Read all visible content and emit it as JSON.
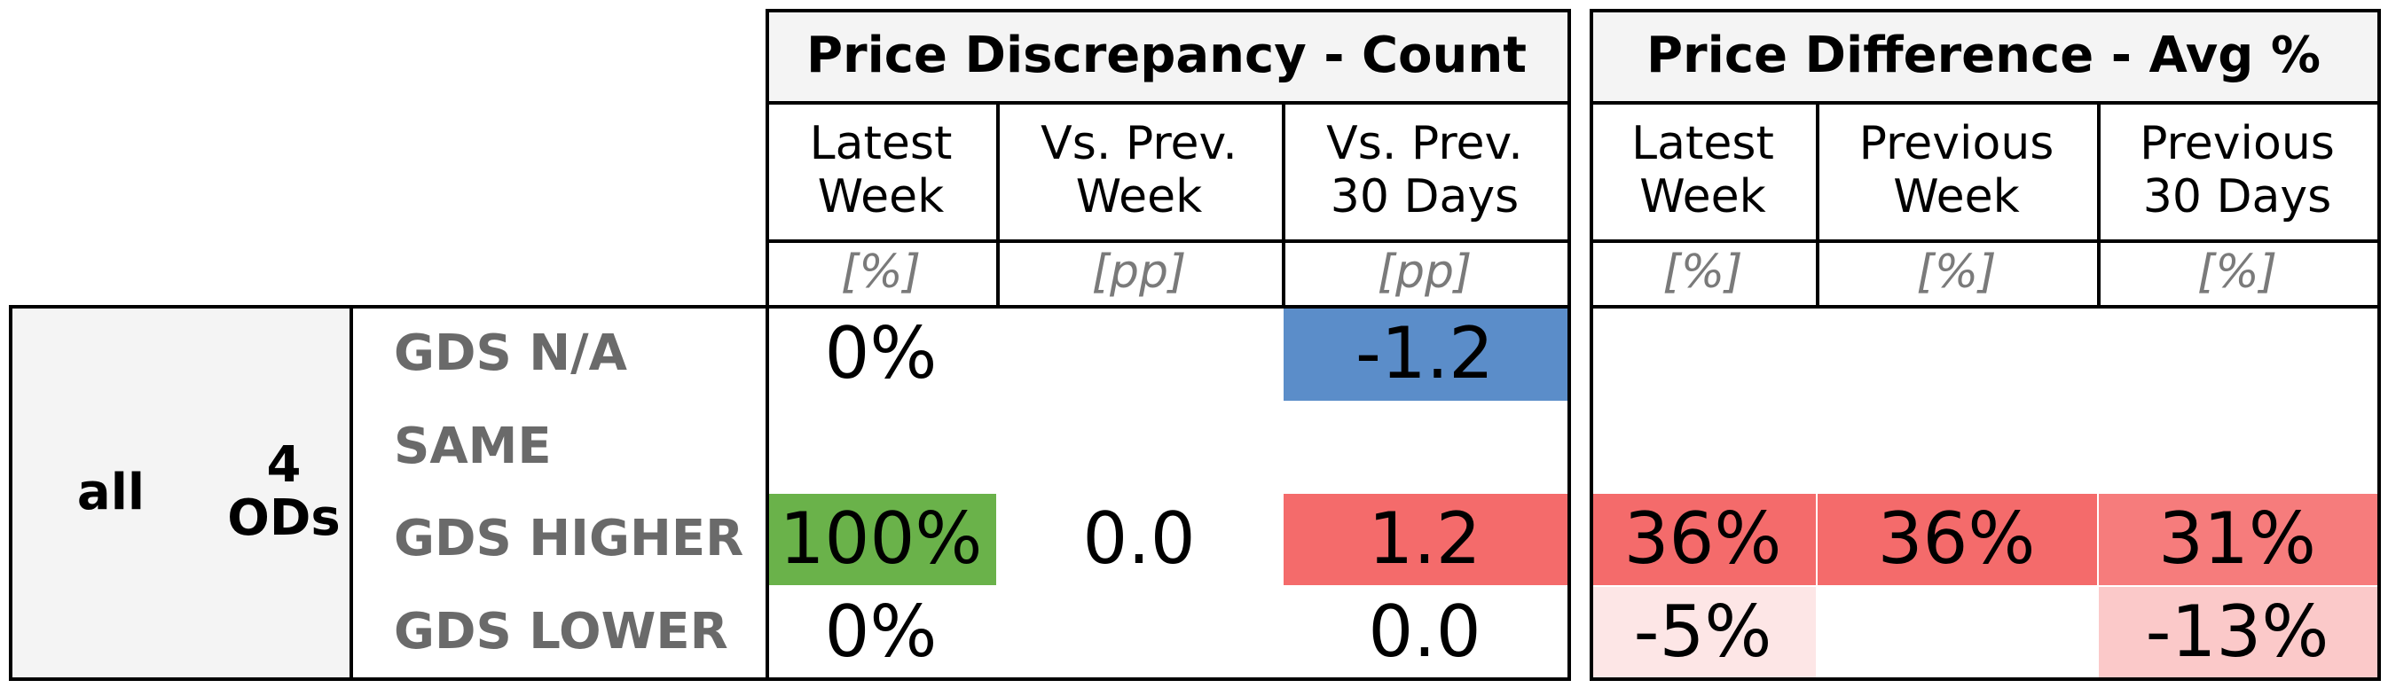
{
  "chart_data": {
    "type": "table",
    "row_group": {
      "label": "all",
      "count_label": "4\nODs"
    },
    "groups": [
      {
        "title": "Price Discrepancy - Count",
        "columns": [
          {
            "label": "Latest\nWeek",
            "unit": "[%]"
          },
          {
            "label": "Vs. Prev.\nWeek",
            "unit": "[pp]"
          },
          {
            "label": "Vs. Prev.\n30 Days",
            "unit": "[pp]"
          }
        ]
      },
      {
        "title": "Price Difference - Avg %",
        "columns": [
          {
            "label": "Latest\nWeek",
            "unit": "[%]"
          },
          {
            "label": "Previous\nWeek",
            "unit": "[%]"
          },
          {
            "label": "Previous\n30 Days",
            "unit": "[%]"
          }
        ]
      }
    ],
    "rows": [
      {
        "label": "GDS N/A",
        "cells": [
          {
            "text": "0%",
            "color": ""
          },
          {
            "text": "",
            "color": ""
          },
          {
            "text": "-1.2",
            "color": "#5b8dc9"
          },
          {
            "text": "",
            "color": ""
          },
          {
            "text": "",
            "color": ""
          },
          {
            "text": "",
            "color": ""
          }
        ]
      },
      {
        "label": "SAME",
        "cells": [
          {
            "text": "",
            "color": ""
          },
          {
            "text": "",
            "color": ""
          },
          {
            "text": "",
            "color": ""
          },
          {
            "text": "",
            "color": ""
          },
          {
            "text": "",
            "color": ""
          },
          {
            "text": "",
            "color": ""
          }
        ]
      },
      {
        "label": "GDS HIGHER",
        "cells": [
          {
            "text": "100%",
            "color": "#6ab24a"
          },
          {
            "text": "0.0",
            "color": ""
          },
          {
            "text": "1.2",
            "color": "#f46b6b"
          },
          {
            "text": "36%",
            "color": "#f46b6b"
          },
          {
            "text": "36%",
            "color": "#f46b6b"
          },
          {
            "text": "31%",
            "color": "#f67c7c"
          }
        ]
      },
      {
        "label": "GDS LOWER",
        "cells": [
          {
            "text": "0%",
            "color": ""
          },
          {
            "text": "",
            "color": ""
          },
          {
            "text": "0.0",
            "color": ""
          },
          {
            "text": "-5%",
            "color": "#fde6e6"
          },
          {
            "text": "",
            "color": ""
          },
          {
            "text": "-13%",
            "color": "#fbc9c9"
          }
        ]
      }
    ]
  }
}
